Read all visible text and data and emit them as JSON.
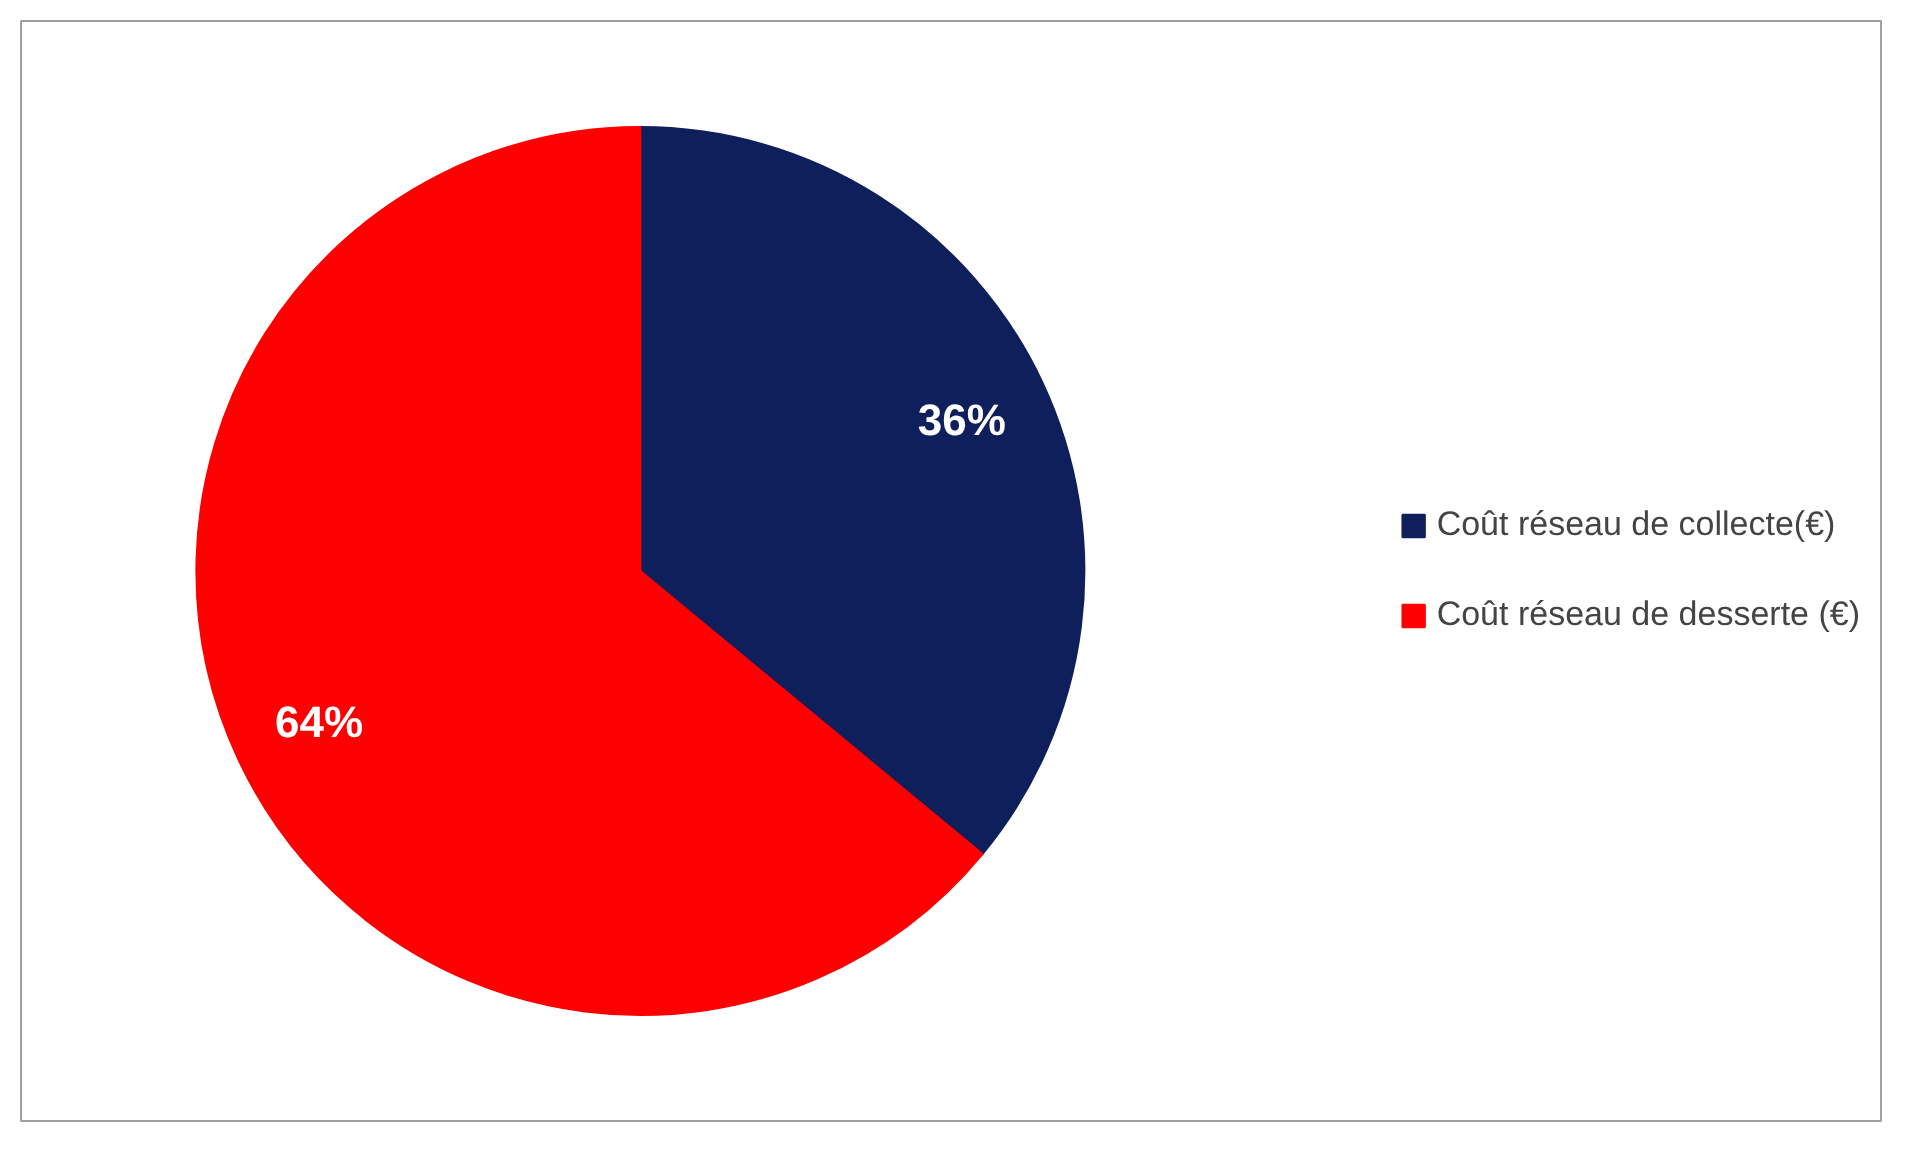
{
  "chart_data": {
    "type": "pie",
    "categories": [
      "Coût réseau de collecte(€)",
      "Coût réseau de desserte (€)"
    ],
    "values": [
      36,
      64
    ],
    "colors": [
      "#0f1f5c",
      "#ff0000"
    ],
    "value_labels": [
      "36%",
      "64%"
    ],
    "legend": "right"
  }
}
